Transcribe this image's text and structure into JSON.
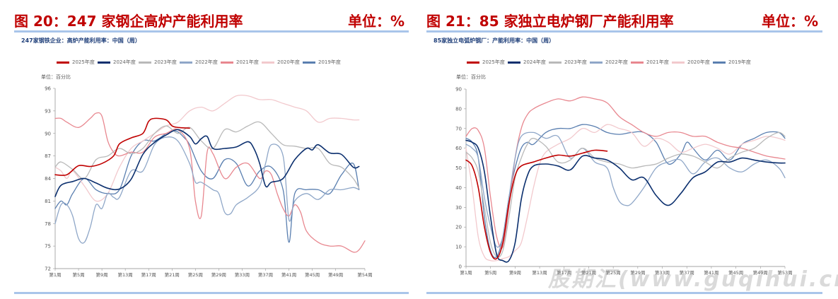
{
  "panels": {
    "left": {
      "title": "图 20：247 家钢企高炉产能利用率",
      "unit": "单位：%",
      "subtitle": "247家钢铁企业：高炉产能利用率：中国（周）",
      "yaxis_label": "单位：百分比"
    },
    "right": {
      "title": "图 21：85 家独立电炉钢厂产能利用率",
      "unit": "单位：%",
      "subtitle": "85家独立电弧炉钢厂：产能利用率：中国（周）",
      "yaxis_label": "单位：百分比"
    }
  },
  "watermark": "股期汇(www.guqihui.cn)",
  "colors": {
    "2025年度": "#c00000",
    "2024年度": "#0b2f6e",
    "2023年度": "#b9b9b9",
    "2022年度": "#8fa7c8",
    "2021年度": "#e8878f",
    "2020年度": "#f2c9cd",
    "2019年度": "#5a7fb0"
  },
  "chart_data": [
    {
      "type": "line",
      "title": "247家钢铁企业：高炉产能利用率：中国（周）",
      "ylabel": "单位：百分比",
      "ylim": [
        72,
        96
      ],
      "yticks": [
        72,
        75,
        78,
        81,
        84,
        87,
        90,
        93,
        96
      ],
      "xlim": [
        1,
        54
      ],
      "xtick_labels": [
        "第1周",
        "第5周",
        "第9周",
        "第13周",
        "第17周",
        "第21周",
        "第25周",
        "第29周",
        "第33周",
        "第37周",
        "第41周",
        "第45周",
        "第49周",
        "第54周"
      ],
      "xtick_positions": [
        1,
        5,
        9,
        13,
        17,
        21,
        25,
        29,
        33,
        37,
        41,
        45,
        49,
        54
      ],
      "series": [
        {
          "name": "2025年度",
          "x": [
            1,
            3,
            5,
            7,
            9,
            11,
            12,
            14,
            16,
            17,
            18,
            20,
            21,
            22,
            24
          ],
          "values": [
            84.5,
            84.5,
            85.7,
            85.6,
            86.0,
            87.0,
            88.6,
            89.4,
            90.0,
            91.6,
            92.0,
            91.8,
            91.0,
            90.8,
            90.7
          ]
        },
        {
          "name": "2024年度",
          "x": [
            1,
            2,
            4,
            6,
            8,
            10,
            12,
            14,
            16,
            18,
            20,
            22,
            24,
            25,
            26,
            27,
            28,
            30,
            32,
            34,
            35,
            36,
            37,
            38,
            40,
            42,
            44,
            45,
            46,
            48,
            50,
            52,
            53
          ],
          "values": [
            81.6,
            83.1,
            83.6,
            84.0,
            83.4,
            82.7,
            82.6,
            83.9,
            87.2,
            88.8,
            89.8,
            90.5,
            89.6,
            88.6,
            89.3,
            89.6,
            88.0,
            88.0,
            88.2,
            88.9,
            88.0,
            86.0,
            83.0,
            83.5,
            84.0,
            86.5,
            88.0,
            87.8,
            88.5,
            87.4,
            87.2,
            85.5,
            85.6
          ]
        },
        {
          "name": "2023年度",
          "x": [
            1,
            2,
            4,
            6,
            8,
            10,
            12,
            14,
            16,
            18,
            20,
            22,
            24,
            26,
            28,
            30,
            32,
            34,
            36,
            38,
            40,
            42,
            44,
            46,
            48,
            50,
            52,
            53
          ],
          "values": [
            85.5,
            86.2,
            85.2,
            84.0,
            86.5,
            87.0,
            88.0,
            87.3,
            88.0,
            90.0,
            91.0,
            90.0,
            90.8,
            89.0,
            88.0,
            90.5,
            90.2,
            91.0,
            91.5,
            90.0,
            88.5,
            88.3,
            88.0,
            88.0,
            86.0,
            85.5,
            84.0,
            82.7
          ]
        },
        {
          "name": "2022年度",
          "x": [
            1,
            2,
            3,
            4,
            5,
            6,
            7,
            8,
            9,
            10,
            11,
            12,
            14,
            16,
            18,
            20,
            22,
            24,
            25,
            26,
            28,
            29,
            30,
            31,
            32,
            34,
            36,
            37,
            38,
            40,
            41,
            42,
            44,
            46,
            48,
            50,
            52,
            53
          ],
          "values": [
            78.0,
            80.5,
            80.5,
            79.0,
            76.0,
            75.5,
            77.5,
            80.5,
            80.0,
            82.0,
            81.5,
            81.5,
            85.0,
            85.0,
            88.5,
            89.5,
            89.0,
            86.0,
            83.5,
            83.5,
            82.5,
            82.0,
            79.5,
            79.3,
            80.5,
            81.5,
            83.0,
            86.0,
            88.5,
            87.0,
            78.5,
            81.0,
            82.0,
            81.2,
            82.5,
            82.5,
            82.8,
            82.5
          ]
        },
        {
          "name": "2021年度",
          "x": [
            1,
            2,
            3,
            5,
            7,
            8,
            9,
            10,
            11,
            12,
            14,
            16,
            18,
            20,
            22,
            24,
            25,
            26,
            27,
            28,
            30,
            32,
            34,
            36,
            37,
            38,
            39,
            40,
            41,
            42,
            43,
            44,
            46,
            48,
            50,
            52,
            53,
            54
          ],
          "values": [
            92.0,
            92.0,
            91.5,
            90.8,
            92.0,
            92.7,
            92.3,
            89.0,
            87.5,
            87.0,
            87.5,
            87.5,
            89.5,
            90.0,
            90.5,
            88.0,
            81.0,
            79.0,
            87.5,
            87.3,
            84.0,
            85.5,
            86.0,
            84.0,
            85.0,
            84.5,
            82.0,
            80.0,
            79.0,
            80.5,
            79.5,
            77.0,
            75.5,
            75.0,
            75.0,
            74.2,
            74.5,
            75.7
          ]
        },
        {
          "name": "2020年度",
          "x": [
            1,
            2,
            3,
            4,
            6,
            8,
            10,
            12,
            14,
            16,
            18,
            20,
            22,
            24,
            26,
            28,
            30,
            32,
            34,
            36,
            38,
            40,
            42,
            44,
            46,
            48,
            50,
            52,
            53
          ],
          "values": [
            85.5,
            85.0,
            84.0,
            85.0,
            83.0,
            81.0,
            82.0,
            85.5,
            88.0,
            89.0,
            90.0,
            91.0,
            91.5,
            93.0,
            93.5,
            93.0,
            94.0,
            95.0,
            95.0,
            94.5,
            94.5,
            94.0,
            93.5,
            93.0,
            91.5,
            92.0,
            92.0,
            91.8,
            91.8
          ]
        },
        {
          "name": "2019年度",
          "x": [
            1,
            2,
            3,
            4,
            6,
            8,
            10,
            12,
            14,
            16,
            18,
            20,
            21,
            22,
            23,
            24,
            26,
            28,
            30,
            32,
            34,
            36,
            38,
            40,
            41,
            42,
            44,
            46,
            48,
            50,
            52,
            53
          ],
          "values": [
            80.0,
            81.0,
            80.5,
            82.0,
            84.0,
            82.5,
            82.0,
            82.5,
            87.0,
            89.0,
            89.0,
            90.0,
            90.3,
            90.2,
            89.5,
            88.5,
            85.0,
            84.0,
            86.5,
            86.0,
            83.0,
            85.0,
            85.5,
            82.5,
            75.5,
            82.0,
            82.5,
            82.5,
            82.0,
            84.5,
            86.0,
            82.5
          ]
        }
      ]
    },
    {
      "type": "line",
      "title": "85家独立电弧炉钢厂：产能利用率：中国（周）",
      "ylabel": "单位：百分比",
      "ylim": [
        0,
        90
      ],
      "yticks": [
        0,
        10,
        20,
        30,
        40,
        50,
        60,
        70,
        80,
        90
      ],
      "xlim": [
        1,
        53
      ],
      "xtick_labels": [
        "第1周",
        "第5周",
        "第9周",
        "第13周",
        "第17周",
        "第21周",
        "第25周",
        "第29周",
        "第33周",
        "第37周",
        "第41周",
        "第45周",
        "第49周",
        "第53周"
      ],
      "xtick_positions": [
        1,
        5,
        9,
        13,
        17,
        21,
        25,
        29,
        33,
        37,
        41,
        45,
        49,
        53
      ],
      "series": [
        {
          "name": "2025年度",
          "x": [
            1,
            2,
            3,
            4,
            5,
            6,
            7,
            8,
            9,
            10,
            12,
            14,
            16,
            18,
            20,
            22,
            24
          ],
          "values": [
            54.0,
            51.0,
            40.0,
            20.0,
            7.0,
            4.0,
            12.0,
            32.0,
            46.0,
            51.0,
            53.0,
            55.0,
            56.5,
            56.0,
            57.5,
            59.0,
            58.5
          ]
        },
        {
          "name": "2024年度",
          "x": [
            1,
            2,
            3,
            4,
            5,
            6,
            7,
            8,
            9,
            10,
            11,
            12,
            14,
            16,
            18,
            20,
            22,
            24,
            26,
            28,
            30,
            32,
            34,
            36,
            38,
            40,
            42,
            44,
            46,
            48,
            50,
            52,
            53
          ],
          "values": [
            64.0,
            63.0,
            60.0,
            48.0,
            25.0,
            6.0,
            3.0,
            3.0,
            12.0,
            34.0,
            46.0,
            51.0,
            52.0,
            51.0,
            49.0,
            56.0,
            55.0,
            54.0,
            50.0,
            44.0,
            45.0,
            36.0,
            31.0,
            37.0,
            45.0,
            48.0,
            53.0,
            53.0,
            55.0,
            54.0,
            53.0,
            52.5,
            52.5
          ]
        },
        {
          "name": "2023年度",
          "x": [
            1,
            2,
            3,
            4,
            5,
            6,
            7,
            8,
            9,
            10,
            11,
            12,
            14,
            16,
            18,
            20,
            22,
            24,
            26,
            28,
            30,
            32,
            34,
            36,
            38,
            40,
            42,
            44,
            46,
            48,
            50,
            52,
            53
          ],
          "values": [
            58.0,
            55.0,
            48.0,
            30.0,
            12.0,
            5.0,
            8.0,
            25.0,
            45.0,
            55.0,
            62.0,
            65.0,
            61.0,
            53.0,
            54.0,
            60.0,
            55.0,
            53.0,
            52.0,
            50.0,
            51.0,
            52.0,
            55.0,
            57.0,
            56.0,
            53.0,
            50.0,
            55.0,
            58.0,
            60.0,
            65.0,
            68.0,
            66.0
          ]
        },
        {
          "name": "2022年度",
          "x": [
            1,
            2,
            3,
            4,
            5,
            6,
            7,
            8,
            9,
            10,
            12,
            14,
            16,
            18,
            20,
            22,
            24,
            25,
            26,
            27,
            28,
            30,
            32,
            34,
            36,
            38,
            40,
            42,
            44,
            46,
            48,
            50,
            52,
            53
          ],
          "values": [
            62.0,
            60.0,
            55.0,
            35.0,
            20.0,
            10.0,
            15.0,
            35.0,
            55.0,
            66.0,
            68.0,
            65.0,
            66.0,
            55.0,
            60.0,
            53.0,
            50.0,
            40.0,
            33.0,
            31.0,
            32.0,
            40.0,
            50.0,
            53.0,
            54.0,
            47.0,
            53.0,
            55.0,
            50.0,
            48.0,
            52.0,
            54.0,
            50.0,
            45.0
          ]
        },
        {
          "name": "2021年度",
          "x": [
            1,
            2,
            3,
            4,
            5,
            6,
            7,
            8,
            9,
            10,
            11,
            12,
            14,
            16,
            18,
            20,
            22,
            24,
            26,
            28,
            30,
            32,
            34,
            36,
            38,
            40,
            42,
            44,
            46,
            48,
            50,
            52,
            53
          ],
          "values": [
            66.0,
            70.0,
            69.0,
            60.0,
            35.0,
            15.0,
            10.0,
            30.0,
            55.0,
            70.0,
            77.0,
            80.0,
            83.0,
            85.0,
            84.0,
            86.0,
            85.0,
            83.0,
            76.0,
            72.0,
            68.0,
            66.0,
            68.0,
            68.0,
            66.0,
            66.0,
            63.0,
            61.0,
            60.0,
            58.0,
            56.0,
            55.0,
            54.5
          ]
        },
        {
          "name": "2020年度",
          "x": [
            1,
            2,
            3,
            4,
            5,
            6,
            7,
            8,
            9,
            10,
            11,
            12,
            13,
            14,
            16,
            18,
            20,
            22,
            24,
            26,
            28,
            30,
            32,
            34,
            36,
            38,
            40,
            42,
            44,
            46,
            48,
            50,
            52,
            53
          ],
          "values": [
            60.0,
            40.0,
            15.0,
            5.0,
            3.0,
            3.0,
            4.0,
            5.0,
            8.0,
            12.0,
            25.0,
            40.0,
            52.0,
            58.0,
            62.0,
            65.0,
            70.0,
            68.0,
            72.0,
            70.0,
            68.0,
            61.0,
            65.0,
            63.0,
            58.0,
            60.0,
            62.0,
            60.0,
            57.0,
            62.0,
            64.0,
            66.0,
            65.0,
            64.0
          ]
        },
        {
          "name": "2019年度",
          "x": [
            1,
            2,
            3,
            4,
            5,
            6,
            7,
            8,
            9,
            10,
            11,
            12,
            14,
            16,
            18,
            20,
            22,
            24,
            26,
            28,
            30,
            32,
            34,
            36,
            37,
            38,
            40,
            42,
            44,
            46,
            48,
            50,
            52,
            53
          ],
          "values": [
            65.0,
            63.0,
            55.0,
            25.0,
            8.0,
            5.0,
            15.0,
            35.0,
            50.0,
            60.0,
            63.0,
            62.0,
            68.0,
            70.0,
            70.0,
            72.0,
            71.0,
            68.0,
            67.0,
            68.0,
            68.0,
            63.0,
            52.0,
            57.0,
            63.0,
            60.0,
            54.0,
            59.0,
            54.0,
            62.0,
            65.0,
            68.0,
            68.0,
            65.0
          ]
        }
      ]
    }
  ]
}
